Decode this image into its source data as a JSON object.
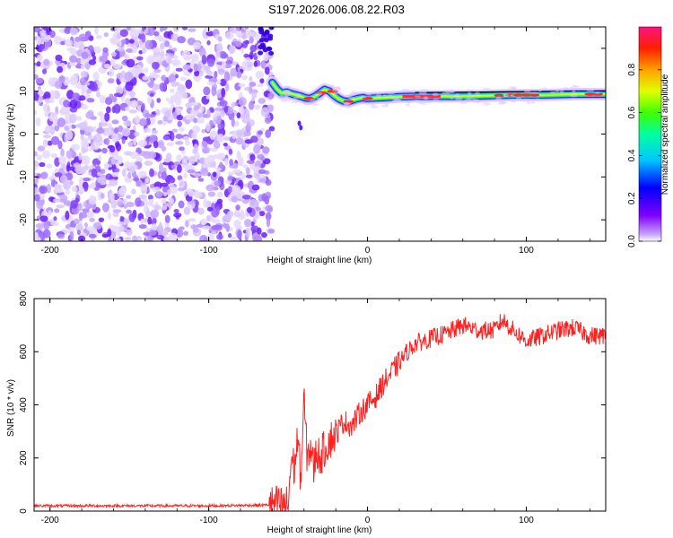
{
  "title": "S197.2026.006.08.22.R03",
  "chart_data": [
    {
      "type": "heatmap",
      "name": "spectrogram",
      "xlabel": "Height of straight line (km)",
      "ylabel": "Frequency (Hz)",
      "xlim": [
        -210,
        150
      ],
      "ylim": [
        -25,
        25
      ],
      "xticks": [
        -200,
        -100,
        0,
        100
      ],
      "xtick_labels": [
        "-200",
        "-100",
        "0",
        "100"
      ],
      "yticks": [
        -20,
        -10,
        0,
        10,
        20
      ],
      "ytick_labels": [
        "-20",
        "-10",
        "0",
        "10",
        "20"
      ],
      "noise_region_x": [
        -210,
        -60
      ],
      "signal_track": {
        "x": [
          -60,
          -57,
          -54,
          -51,
          -48,
          -45,
          -42,
          -39,
          -36,
          -33,
          -30,
          -27,
          -24,
          -21,
          -18,
          -15,
          -12,
          -9,
          -6,
          -3,
          0,
          10,
          20,
          30,
          40,
          50,
          60,
          70,
          80,
          90,
          100,
          110,
          120,
          130,
          140,
          150
        ],
        "freq": [
          12,
          10.5,
          9.5,
          9.8,
          9.4,
          9.1,
          8.8,
          8.4,
          8.3,
          8.8,
          9.6,
          10.4,
          10.0,
          9.0,
          8.2,
          7.7,
          7.6,
          8.0,
          8.3,
          8.5,
          8.3,
          8.5,
          8.7,
          8.8,
          8.8,
          8.8,
          8.8,
          8.9,
          9.0,
          9.1,
          9.1,
          9.1,
          9.2,
          9.3,
          9.3,
          9.3
        ]
      },
      "colorbar": {
        "label": "Normalized spectral amplitude",
        "range": [
          0,
          1
        ],
        "ticks": [
          0.0,
          0.2,
          0.4,
          0.6,
          0.8
        ],
        "tick_labels": [
          "0.0",
          "0.2",
          "0.4",
          "0.6",
          "0.8"
        ]
      }
    },
    {
      "type": "line",
      "name": "snr",
      "xlabel": "Height of straight line (km)",
      "ylabel": "SNR (10 * v/v)",
      "xlim": [
        -210,
        150
      ],
      "ylim": [
        0,
        800
      ],
      "xticks": [
        -200,
        -100,
        0,
        100
      ],
      "xtick_labels": [
        "-200",
        "-100",
        "0",
        "100"
      ],
      "yticks": [
        0,
        200,
        400,
        600,
        800
      ],
      "ytick_labels": [
        "0",
        "200",
        "400",
        "600",
        "800"
      ],
      "color": "#ff2020",
      "series": [
        {
          "name": "SNR",
          "x": [
            -210,
            -150,
            -100,
            -70,
            -50,
            -48,
            -46,
            -44,
            -42,
            -40,
            -38,
            -36,
            -34,
            -32,
            -30,
            -25,
            -20,
            -15,
            -10,
            -5,
            0,
            5,
            10,
            15,
            20,
            25,
            30,
            40,
            50,
            60,
            70,
            80,
            85,
            90,
            100,
            110,
            120,
            130,
            140,
            150
          ],
          "values": [
            20,
            20,
            20,
            22,
            25,
            200,
            160,
            280,
            120,
            420,
            200,
            250,
            160,
            230,
            200,
            260,
            290,
            340,
            320,
            370,
            400,
            430,
            480,
            520,
            560,
            600,
            630,
            650,
            670,
            700,
            680,
            680,
            720,
            690,
            640,
            660,
            680,
            690,
            660,
            660
          ]
        }
      ]
    }
  ]
}
